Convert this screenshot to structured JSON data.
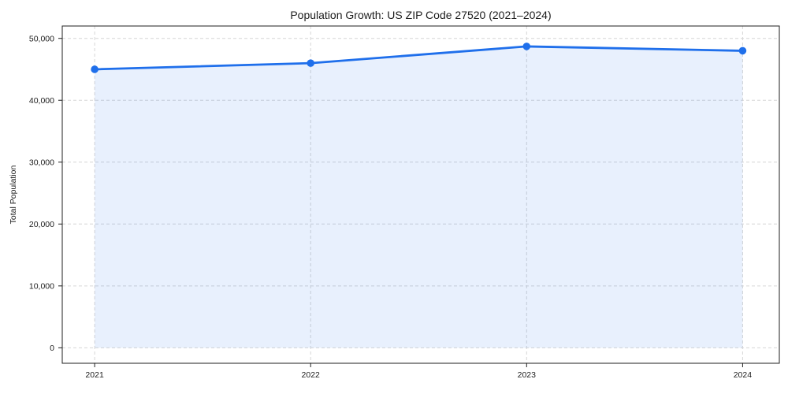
{
  "chart_data": {
    "type": "area",
    "title": "Population Growth: US ZIP Code 27520 (2021–2024)",
    "xlabel": "",
    "ylabel": "Total Population",
    "categories": [
      "2021",
      "2022",
      "2023",
      "2024"
    ],
    "x": [
      2021,
      2022,
      2023,
      2024
    ],
    "series": [
      {
        "name": "Total Population",
        "values": [
          45000,
          46000,
          48700,
          48000
        ]
      }
    ],
    "x_tick_labels": [
      "2021",
      "2022",
      "2023",
      "2024"
    ],
    "yticks": [
      0,
      10000,
      20000,
      30000,
      40000,
      50000
    ],
    "y_tick_labels": [
      "0",
      "10,000",
      "20,000",
      "30,000",
      "40,000",
      "50,000"
    ],
    "xlim": [
      2020.85,
      2024.17
    ],
    "ylim": [
      -2500,
      52000
    ],
    "grid": true,
    "grid_style": "dashed",
    "legend_position": "none",
    "marker": "circle",
    "fill_to_zero": true,
    "area_alpha": 0.1,
    "colors": {
      "line": "#1f6feb",
      "marker": "#1f6feb",
      "area_fill": "#1f6feb",
      "grid": "#d6d6d6",
      "frame": "#1f1f1f",
      "text": "#1c1c1c",
      "background": "#ffffff"
    }
  }
}
